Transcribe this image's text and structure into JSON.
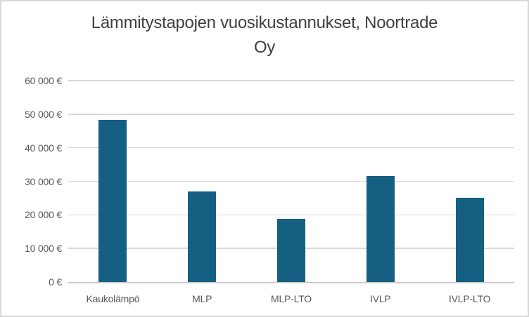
{
  "chart": {
    "title_line1": "Lämmitystapojen vuosikustannukset, Noortrade",
    "title_line2": "Oy"
  },
  "chart_data": {
    "type": "bar",
    "title": "Lämmitystapojen vuosikustannukset, Noortrade Oy",
    "categories": [
      "Kaukolämpö",
      "MLP",
      "MLP-LTO",
      "IVLP",
      "IVLP-LTO"
    ],
    "values": [
      48400,
      27000,
      18900,
      31600,
      25000
    ],
    "xlabel": "",
    "ylabel": "",
    "ylim": [
      0,
      60000
    ],
    "y_ticks": [
      0,
      10000,
      20000,
      30000,
      40000,
      50000,
      60000
    ],
    "y_tick_labels": [
      "0 €",
      "10 000 €",
      "20 000 €",
      "30 000 €",
      "40 000 €",
      "50 000 €",
      "60 000 €"
    ],
    "grid": true,
    "legend": false,
    "colors": {
      "bar": "#156082",
      "gridline": "#d9d9d9",
      "axis_line": "#c9c9c9",
      "title_text": "#404040",
      "tick_text": "#595959",
      "frame_border": "#d8d8d8",
      "background": "#ffffff"
    }
  }
}
